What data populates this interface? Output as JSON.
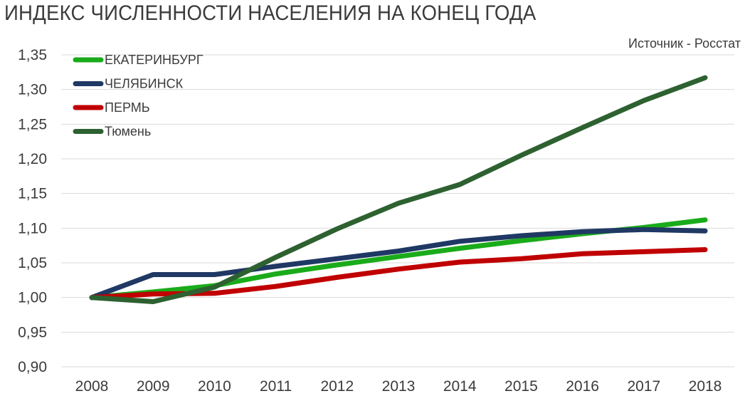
{
  "chart_data": {
    "type": "line",
    "title": "ИНДЕКС ЧИСЛЕННОСТИ НАСЕЛЕНИЯ НА КОНЕЦ ГОДА",
    "source_note": "Источник - Росстат",
    "categories": [
      "2008",
      "2009",
      "2010",
      "2011",
      "2012",
      "2013",
      "2014",
      "2015",
      "2016",
      "2017",
      "2018"
    ],
    "ylim": [
      0.9,
      1.35
    ],
    "yticks": [
      "0,90",
      "0,95",
      "1,00",
      "1,05",
      "1,10",
      "1,15",
      "1,20",
      "1,25",
      "1,30",
      "1,35"
    ],
    "grid": true,
    "legend_position": "top-left",
    "series": [
      {
        "name": "ЕКАТЕРИНБУРГ",
        "color": "#1aab1a",
        "values": [
          1.0,
          1.008,
          1.017,
          1.034,
          1.047,
          1.059,
          1.071,
          1.082,
          1.092,
          1.101,
          1.112
        ]
      },
      {
        "name": "ЧЕЛЯБИНСК",
        "color": "#1f3864",
        "values": [
          1.0,
          1.033,
          1.033,
          1.045,
          1.056,
          1.067,
          1.081,
          1.089,
          1.095,
          1.098,
          1.096
        ]
      },
      {
        "name": "ПЕРМЬ",
        "color": "#c00000",
        "values": [
          1.0,
          1.005,
          1.006,
          1.016,
          1.029,
          1.041,
          1.051,
          1.056,
          1.063,
          1.066,
          1.069
        ]
      },
      {
        "name": "Тюмень",
        "color": "#2d6130",
        "values": [
          1.0,
          0.994,
          1.015,
          1.058,
          1.099,
          1.136,
          1.163,
          1.205,
          1.245,
          1.284,
          1.317
        ]
      }
    ]
  }
}
